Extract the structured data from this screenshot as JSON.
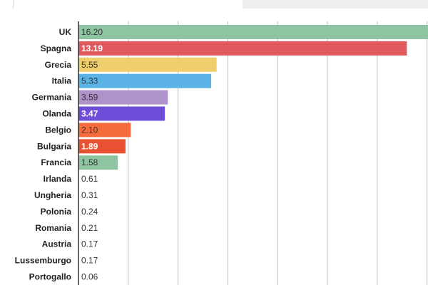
{
  "chart_data": {
    "type": "bar",
    "orientation": "horizontal",
    "title": "",
    "xlabel": "",
    "ylabel": "",
    "categories": [
      "UK",
      "Spagna",
      "Grecia",
      "Italia",
      "Germania",
      "Olanda",
      "Belgio",
      "Bulgaria",
      "Francia",
      "Irlanda",
      "Ungheria",
      "Polonia",
      "Romania",
      "Austria",
      "Lussemburgo",
      "Portogallo"
    ],
    "values": [
      16.2,
      13.19,
      5.55,
      5.33,
      3.59,
      3.47,
      2.1,
      1.89,
      1.58,
      0.61,
      0.31,
      0.24,
      0.21,
      0.17,
      0.17,
      0.06
    ],
    "value_labels": [
      "16.20",
      "13.19",
      "5.55",
      "5.33",
      "3.59",
      "3.47",
      "2.10",
      "1.89",
      "1.58",
      "0.61",
      "0.31",
      "0.24",
      "0.21",
      "0.17",
      "0.17",
      "0.06"
    ],
    "colors": [
      "#8fc4a2",
      "#e05a5e",
      "#f0ce6e",
      "#5bb3e5",
      "#ad93c9",
      "#6e4ed9",
      "#f46b3c",
      "#e85233",
      "#8fc4a2",
      null,
      null,
      null,
      null,
      null,
      null,
      null
    ],
    "value_label_colors": [
      "#333333",
      "#ffffff",
      "#333333",
      "#333333",
      "#333333",
      "#ffffff",
      "#333333",
      "#ffffff",
      "#333333",
      "#333333",
      "#333333",
      "#333333",
      "#333333",
      "#333333",
      "#333333",
      "#333333"
    ],
    "xlim": [
      0,
      14.5
    ],
    "grid": true,
    "grid_color": "#bfbfbf",
    "legend": "none"
  }
}
